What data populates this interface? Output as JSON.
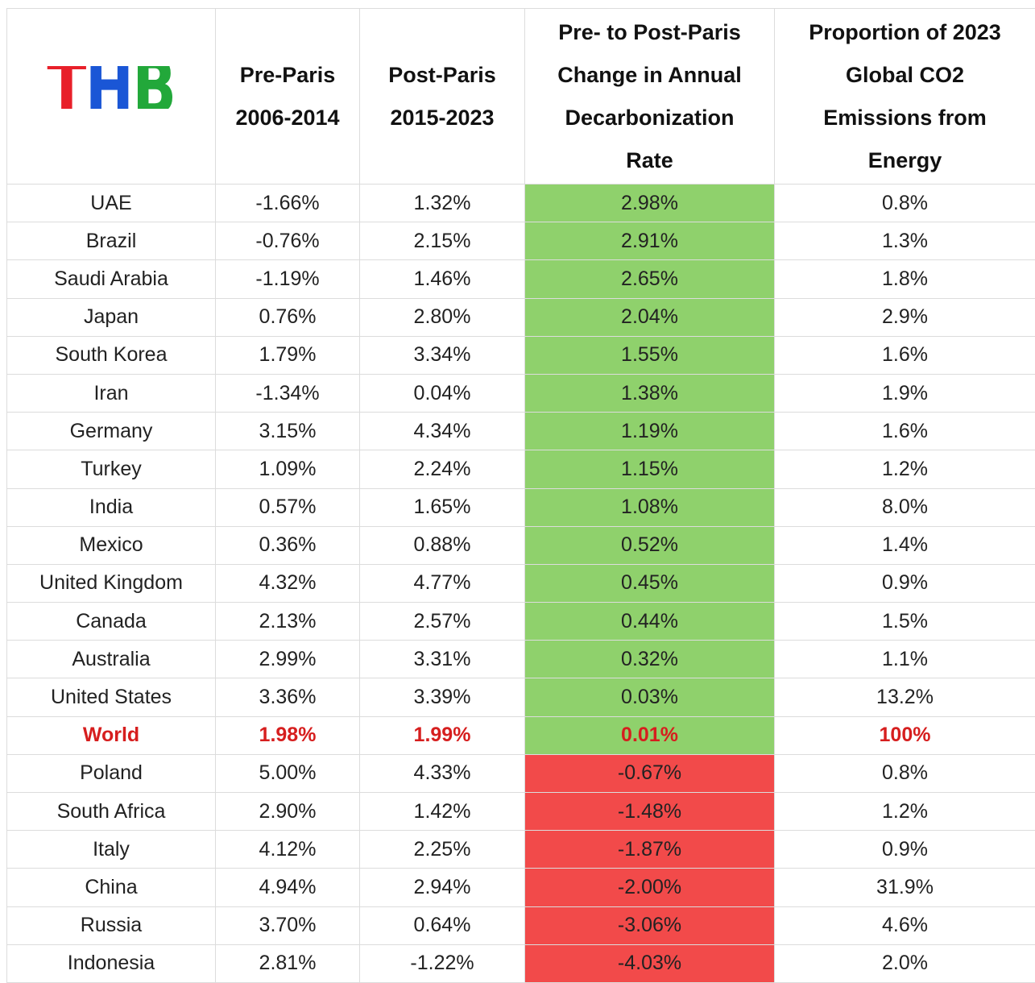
{
  "logo": "THB",
  "table": {
    "headers": [
      "Pre-Paris\n2006-2014",
      "Post-Paris\n2015-2023",
      "Pre- to Post-Paris\nChange in Annual\nDecarbonization\nRate",
      "Proportion of 2023\nGlobal CO2\nEmissions from\nEnergy"
    ],
    "rows": [
      [
        "UAE",
        "-1.66%",
        "1.32%",
        "2.98%",
        "0.8%"
      ],
      [
        "Brazil",
        "-0.76%",
        "2.15%",
        "2.91%",
        "1.3%"
      ],
      [
        "Saudi Arabia",
        "-1.19%",
        "1.46%",
        "2.65%",
        "1.8%"
      ],
      [
        "Japan",
        "0.76%",
        "2.80%",
        "2.04%",
        "2.9%"
      ],
      [
        "South Korea",
        "1.79%",
        "3.34%",
        "1.55%",
        "1.6%"
      ],
      [
        "Iran",
        "-1.34%",
        "0.04%",
        "1.38%",
        "1.9%"
      ],
      [
        "Germany",
        "3.15%",
        "4.34%",
        "1.19%",
        "1.6%"
      ],
      [
        "Turkey",
        "1.09%",
        "2.24%",
        "1.15%",
        "1.2%"
      ],
      [
        "India",
        "0.57%",
        "1.65%",
        "1.08%",
        "8.0%"
      ],
      [
        "Mexico",
        "0.36%",
        "0.88%",
        "0.52%",
        "1.4%"
      ],
      [
        "United Kingdom",
        "4.32%",
        "4.77%",
        "0.45%",
        "0.9%"
      ],
      [
        "Canada",
        "2.13%",
        "2.57%",
        "0.44%",
        "1.5%"
      ],
      [
        "Australia",
        "2.99%",
        "3.31%",
        "0.32%",
        "1.1%"
      ],
      [
        "United States",
        "3.36%",
        "3.39%",
        "0.03%",
        "13.2%"
      ],
      [
        "World",
        "1.98%",
        "1.99%",
        "0.01%",
        "100%"
      ],
      [
        "Poland",
        "5.00%",
        "4.33%",
        "-0.67%",
        "0.8%"
      ],
      [
        "South Africa",
        "2.90%",
        "1.42%",
        "-1.48%",
        "1.2%"
      ],
      [
        "Italy",
        "4.12%",
        "2.25%",
        "-1.87%",
        "0.9%"
      ],
      [
        "China",
        "4.94%",
        "2.94%",
        "-2.00%",
        "31.9%"
      ],
      [
        "Russia",
        "3.70%",
        "0.64%",
        "-3.06%",
        "4.6%"
      ],
      [
        "Indonesia",
        "2.81%",
        "-1.22%",
        "-4.03%",
        "2.0%"
      ]
    ],
    "emphasis_row": 14,
    "highlight_column": 3,
    "positive_color": "#8fd16c",
    "negative_color": "#f24a4a"
  }
}
